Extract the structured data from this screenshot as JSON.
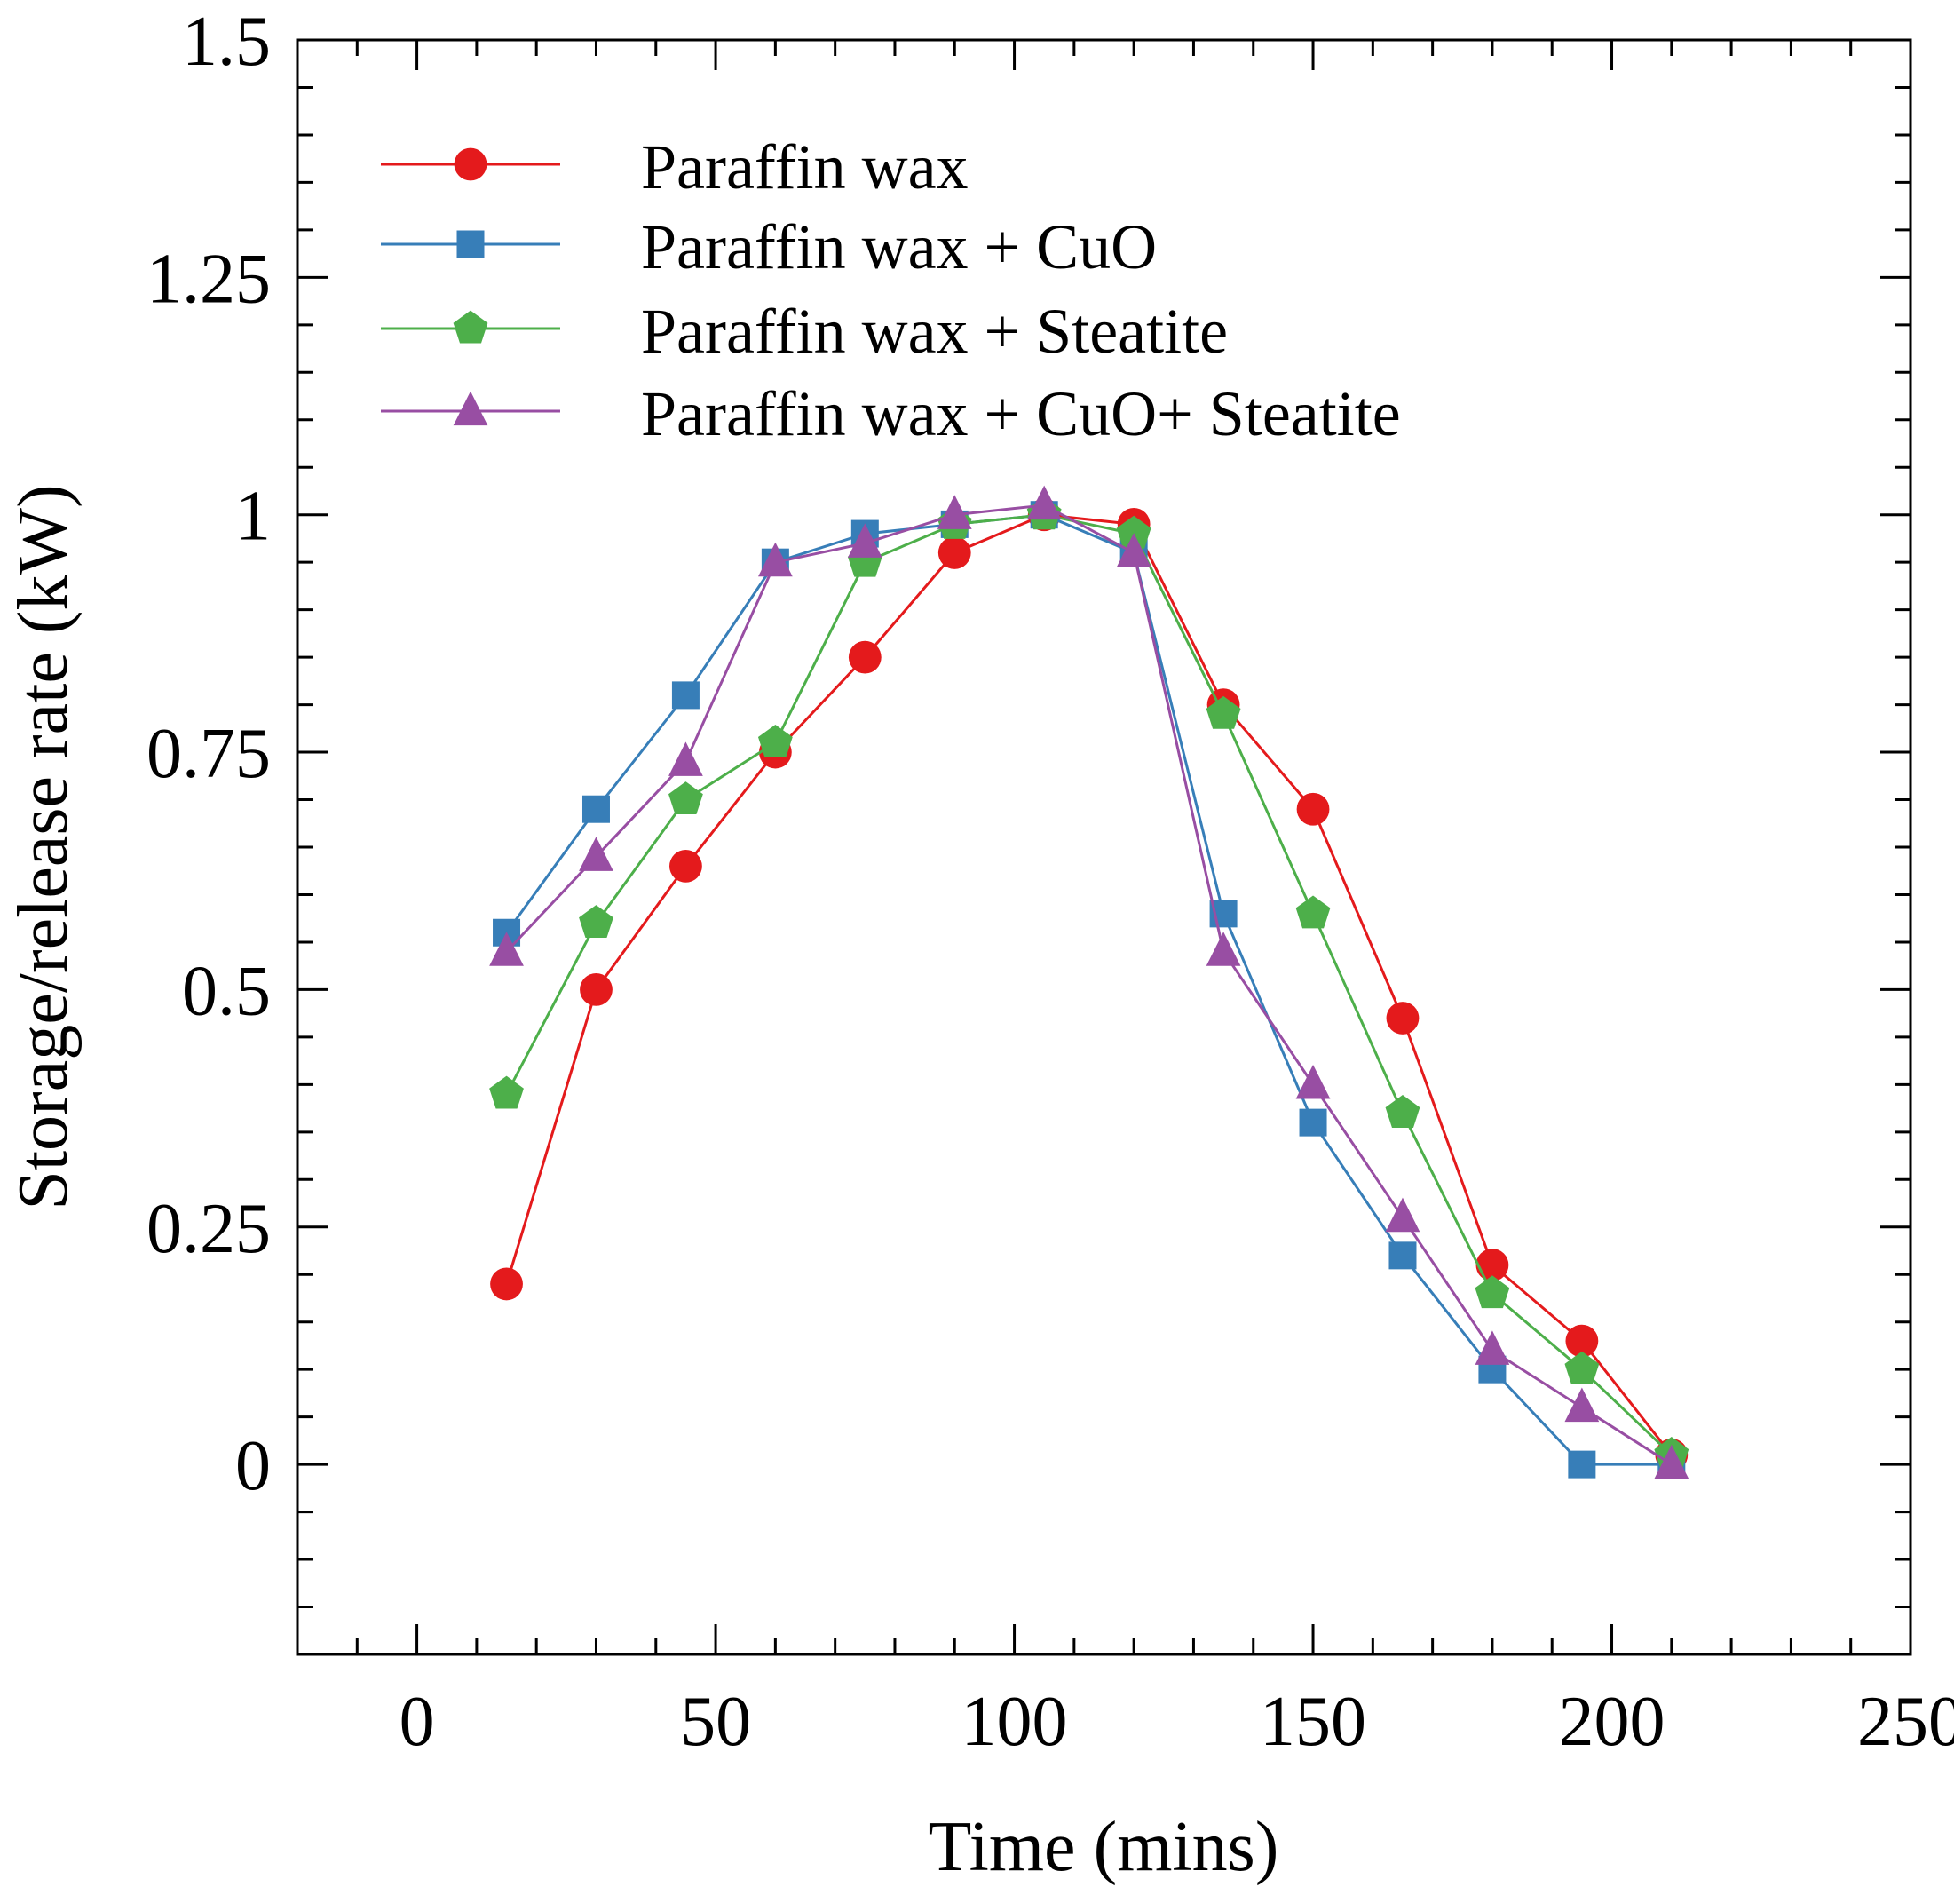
{
  "chart_data": {
    "type": "line",
    "title": "",
    "xlabel": "Time (mins)",
    "ylabel": "Storage/release rate (kW)",
    "xlim": [
      -20,
      250
    ],
    "ylim": [
      -0.2,
      1.5
    ],
    "xticks": [
      0,
      50,
      100,
      150,
      200,
      250
    ],
    "xtick_labels": [
      "0",
      "50",
      "100",
      "150",
      "200",
      "250"
    ],
    "yticks": [
      0,
      0.25,
      0.5,
      0.75,
      1,
      1.25,
      1.5
    ],
    "ytick_labels": [
      "0",
      "0.25",
      "0.5",
      "0.75",
      "1",
      "1.25",
      "1.5"
    ],
    "legend_position": "top-left",
    "series": [
      {
        "name": "Paraffin wax",
        "marker": "circle",
        "color": "#e41a1c",
        "x": [
          15,
          30,
          45,
          60,
          75,
          90,
          105,
          120,
          135,
          150,
          165,
          180,
          195,
          210
        ],
        "y": [
          0.19,
          0.5,
          0.63,
          0.75,
          0.85,
          0.96,
          1.0,
          0.99,
          0.8,
          0.69,
          0.47,
          0.21,
          0.13,
          0.01
        ]
      },
      {
        "name": "Paraffin wax + CuO",
        "marker": "square",
        "color": "#377eb8",
        "x": [
          15,
          30,
          45,
          60,
          75,
          90,
          105,
          120,
          135,
          150,
          165,
          180,
          195,
          210
        ],
        "y": [
          0.56,
          0.69,
          0.81,
          0.95,
          0.98,
          0.99,
          1.0,
          0.96,
          0.58,
          0.36,
          0.22,
          0.1,
          0.0,
          0.0
        ]
      },
      {
        "name": "Paraffin wax + Steatite",
        "marker": "pentagon",
        "color": "#4daf4a",
        "x": [
          15,
          30,
          45,
          60,
          75,
          90,
          105,
          120,
          135,
          150,
          165,
          180,
          195,
          210
        ],
        "y": [
          0.39,
          0.57,
          0.7,
          0.76,
          0.95,
          0.99,
          1.0,
          0.98,
          0.79,
          0.58,
          0.37,
          0.18,
          0.1,
          0.01
        ]
      },
      {
        "name": "Paraffin wax + CuO+ Steatite",
        "marker": "triangle",
        "color": "#984ea3",
        "x": [
          15,
          30,
          45,
          60,
          75,
          90,
          105,
          120,
          135,
          150,
          165,
          180,
          195,
          210
        ],
        "y": [
          0.54,
          0.64,
          0.74,
          0.95,
          0.97,
          1.0,
          1.01,
          0.96,
          0.54,
          0.4,
          0.26,
          0.12,
          0.06,
          0.0
        ]
      }
    ]
  }
}
